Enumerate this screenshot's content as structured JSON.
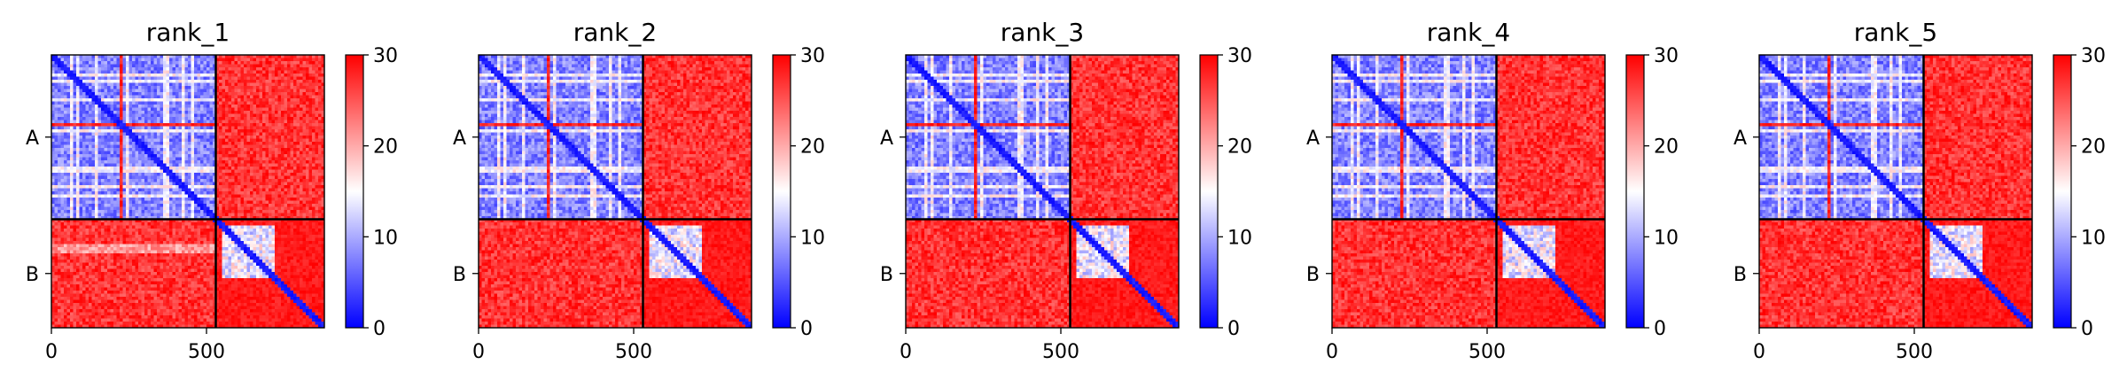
{
  "chart_data": {
    "type": "heatmap",
    "colormap": {
      "name": "bwr",
      "low": "#0000ff",
      "mid": "#ffffff",
      "high": "#ff0000"
    },
    "panels": [
      {
        "title": "rank_1"
      },
      {
        "title": "rank_2"
      },
      {
        "title": "rank_3"
      },
      {
        "title": "rank_4"
      },
      {
        "title": "rank_5"
      }
    ],
    "matrix": {
      "n_residues": 880,
      "chain_boundary": 530,
      "xlim": [
        0,
        880
      ],
      "x_ticks": [
        0,
        500
      ],
      "x_tick_labels": [
        "0",
        "500"
      ],
      "chains": [
        {
          "label": "A",
          "start": 0,
          "end": 530
        },
        {
          "label": "B",
          "start": 530,
          "end": 880
        }
      ]
    },
    "colorbar": {
      "range": [
        0,
        30
      ],
      "ticks": [
        0,
        10,
        20,
        30
      ],
      "tick_labels": [
        "0",
        "10",
        "20",
        "30"
      ]
    }
  }
}
